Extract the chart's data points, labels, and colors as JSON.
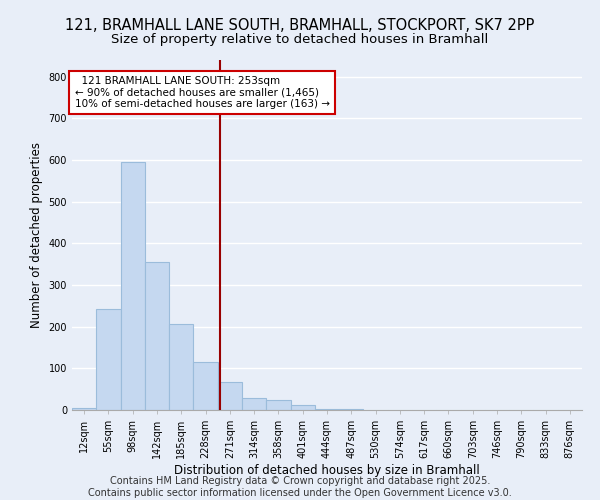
{
  "title_line1": "121, BRAMHALL LANE SOUTH, BRAMHALL, STOCKPORT, SK7 2PP",
  "title_line2": "Size of property relative to detached houses in Bramhall",
  "xlabel": "Distribution of detached houses by size in Bramhall",
  "ylabel": "Number of detached properties",
  "bins": [
    "12sqm",
    "55sqm",
    "98sqm",
    "142sqm",
    "185sqm",
    "228sqm",
    "271sqm",
    "314sqm",
    "358sqm",
    "401sqm",
    "444sqm",
    "487sqm",
    "530sqm",
    "574sqm",
    "617sqm",
    "660sqm",
    "703sqm",
    "746sqm",
    "790sqm",
    "833sqm",
    "876sqm"
  ],
  "values": [
    5,
    242,
    595,
    355,
    207,
    115,
    68,
    30,
    25,
    12,
    3,
    2,
    0,
    0,
    0,
    0,
    0,
    0,
    0,
    0,
    0
  ],
  "bar_color": "#c5d8f0",
  "bar_edge_color": "#9bbcdb",
  "vline_color": "#990000",
  "annotation_text": "  121 BRAMHALL LANE SOUTH: 253sqm\n← 90% of detached houses are smaller (1,465)\n10% of semi-detached houses are larger (163) →",
  "annot_box_color": "#ffffff",
  "annot_border_color": "#cc0000",
  "ylim": [
    0,
    840
  ],
  "yticks": [
    0,
    100,
    200,
    300,
    400,
    500,
    600,
    700,
    800
  ],
  "footer_line1": "Contains HM Land Registry data © Crown copyright and database right 2025.",
  "footer_line2": "Contains public sector information licensed under the Open Government Licence v3.0.",
  "bg_color": "#e8eef8",
  "grid_color": "#ffffff",
  "title_fontsize": 10.5,
  "subtitle_fontsize": 9.5,
  "axis_label_fontsize": 8.5,
  "tick_fontsize": 7,
  "annot_fontsize": 7.5,
  "footer_fontsize": 7
}
